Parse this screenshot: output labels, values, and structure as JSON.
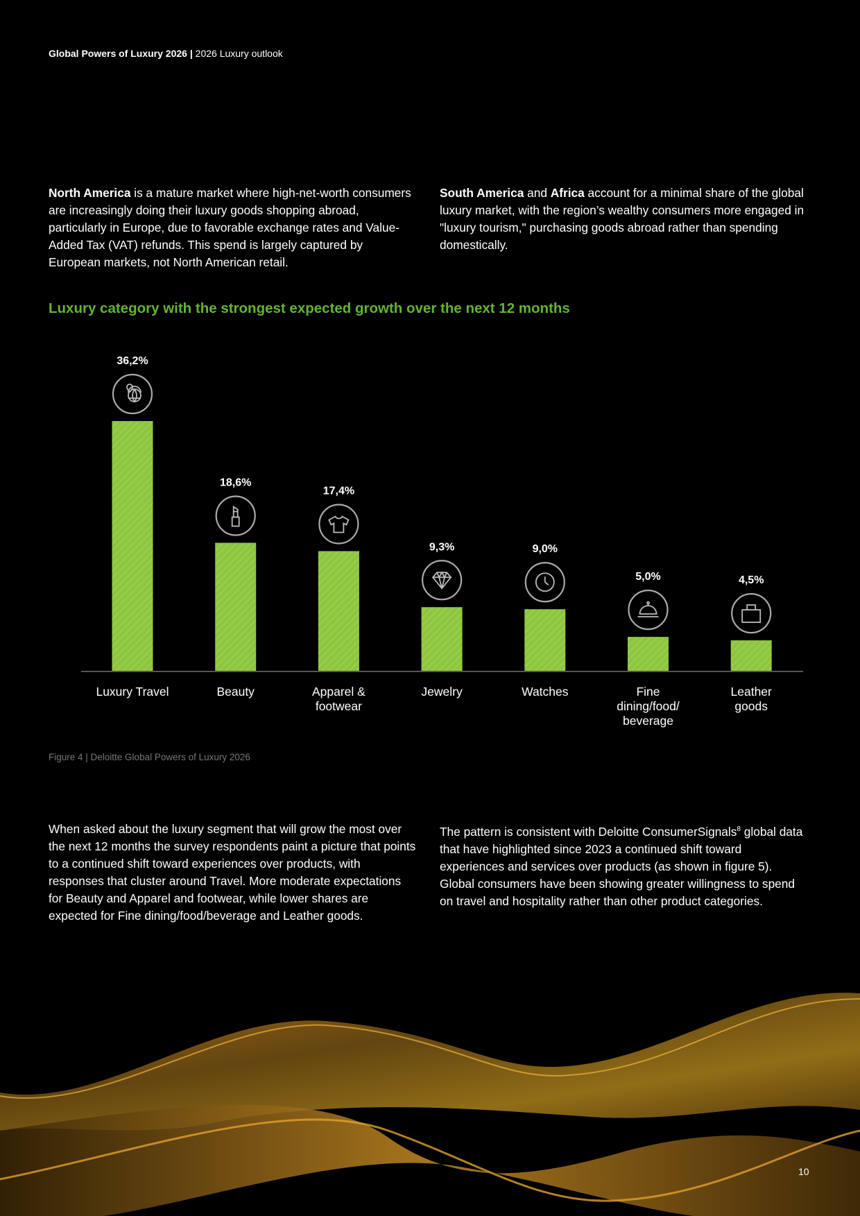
{
  "header": {
    "title_bold": "Global Powers of Luxury 2026",
    "separator": " | ",
    "section": "2026 Luxury outlook"
  },
  "top_paragraphs": [
    {
      "bold": "North America",
      "text": " is a mature market where high-net-worth consumers are increasingly doing their luxury goods shopping abroad, particularly in Europe, due to favorable exchange rates and Value-Added Tax (VAT) refunds. This spend is largely captured by European markets, not North American retail."
    },
    {
      "bold": "South America",
      "mid": " and ",
      "bold2": "Africa",
      "text": " account for a minimal share of the global luxury market, with the region’s wealthy consumers more engaged in \"luxury tourism,\" purchasing goods abroad rather than spending domestically."
    }
  ],
  "chart_data": {
    "type": "bar",
    "title": "Luxury category with the strongest expected growth over the next 12 months",
    "categories": [
      "Luxury Travel",
      "Beauty",
      "Apparel & footwear",
      "Jewelry",
      "Watches",
      "Fine dining/food/ beverage",
      "Leather goods"
    ],
    "values": [
      36.2,
      18.6,
      17.4,
      9.3,
      9.0,
      5.0,
      4.5
    ],
    "data_labels": [
      "36,2%",
      "18,6%",
      "17,4%",
      "9,3%",
      "9,0%",
      "5,0%",
      "4,5%"
    ],
    "icons": [
      "globe-pin-icon",
      "lipstick-icon",
      "tshirt-icon",
      "diamond-icon",
      "clock-icon",
      "cloche-icon",
      "bag-icon"
    ],
    "ylim": [
      0,
      36.2
    ],
    "grid": false,
    "bar_color": "#8dc63f",
    "title_color": "#62b62f"
  },
  "caption": "Figure 4 | Deloitte Global Powers of Luxury 2026",
  "bottom_paragraphs": [
    "When asked about the luxury segment that will grow the most over the next 12 months the survey respondents paint a picture that points to a continued shift toward experiences over products, with responses that cluster around Travel. More moderate expectations for Beauty and Apparel and footwear, while lower shares are expected for Fine dining/food/beverage and Leather goods.",
    {
      "before": "The pattern is consistent with Deloitte ConsumerSignals",
      "sup": "8",
      "after": " global data that have highlighted since 2023 a continued shift toward experiences and services over products (as shown in figure 5). Global consumers have been showing greater willingness to spend on travel and hospitality rather than other product categories."
    }
  ],
  "page_number": "10"
}
